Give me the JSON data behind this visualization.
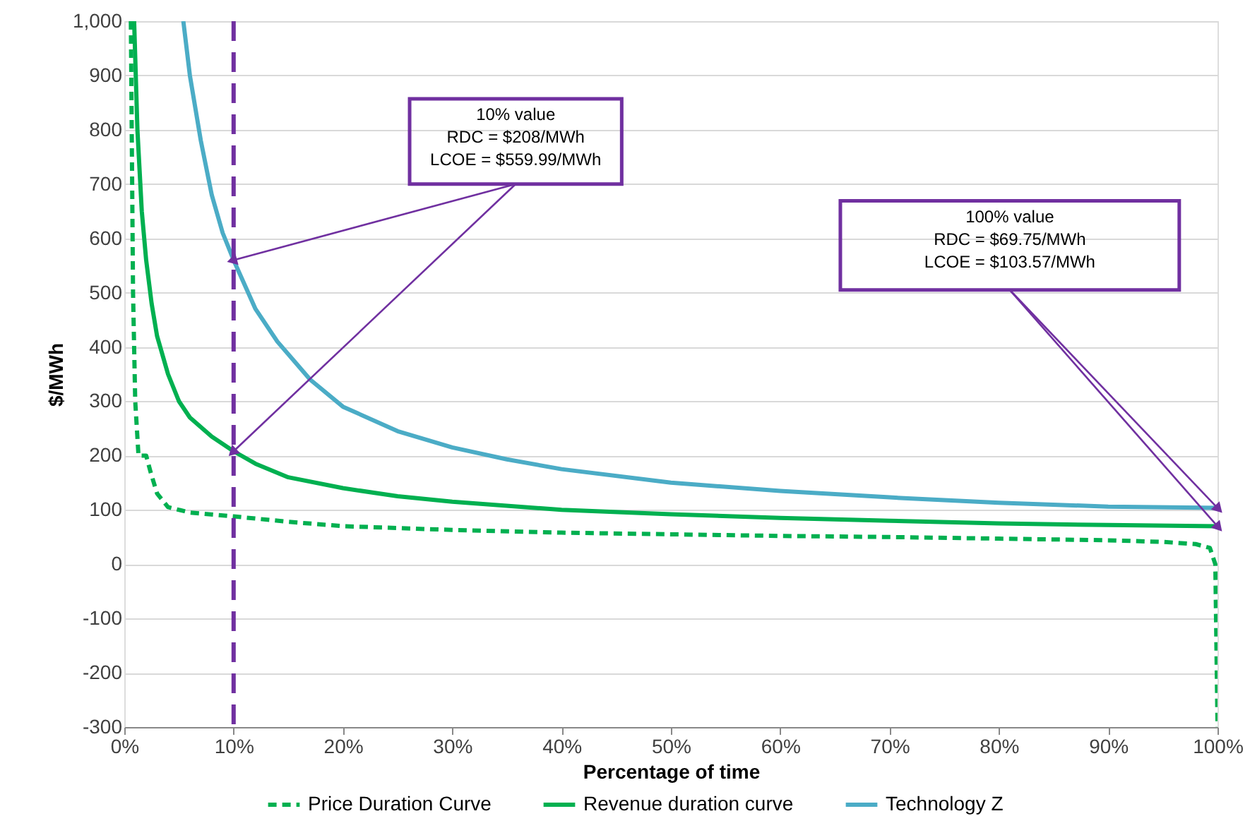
{
  "chart_data": {
    "type": "line",
    "xlabel": "Percentage of time",
    "ylabel": "$/MWh",
    "xlim": [
      0,
      100
    ],
    "xticks": [
      {
        "value": 0,
        "label": "0%"
      },
      {
        "value": 10,
        "label": "10%"
      },
      {
        "value": 20,
        "label": "20%"
      },
      {
        "value": 30,
        "label": "30%"
      },
      {
        "value": 40,
        "label": "40%"
      },
      {
        "value": 50,
        "label": "50%"
      },
      {
        "value": 60,
        "label": "60%"
      },
      {
        "value": 70,
        "label": "70%"
      },
      {
        "value": 80,
        "label": "80%"
      },
      {
        "value": 90,
        "label": "90%"
      },
      {
        "value": 100,
        "label": "100%"
      }
    ],
    "ylim": [
      -300,
      1000
    ],
    "yticks": [
      -300,
      -200,
      -100,
      0,
      100,
      200,
      300,
      400,
      500,
      600,
      700,
      800,
      900,
      {
        "value": 1000,
        "label": "1,000"
      }
    ],
    "grid": "y",
    "legend": "bottom",
    "marker": "none",
    "series": [
      {
        "name": "Price Duration Curve",
        "color": "#00b050",
        "line_style": "dashed",
        "x": [
          0.6,
          0.8,
          1.0,
          1.3,
          1.6,
          2.0,
          2.4,
          3.0,
          4.0,
          6.0,
          10,
          15,
          20,
          30,
          40,
          50,
          60,
          70,
          80,
          90,
          95,
          98,
          99.3,
          99.8,
          100
        ],
        "values": [
          1000,
          500,
          300,
          200,
          200,
          200,
          170,
          130,
          105,
          95,
          88,
          78,
          70,
          63,
          58,
          55,
          52,
          50,
          47,
          44,
          41,
          37,
          30,
          0,
          -300
        ]
      },
      {
        "name": "Revenue duration curve",
        "color": "#00b050",
        "line_style": "solid",
        "x": [
          0.9,
          1.2,
          1.6,
          2.0,
          2.5,
          3.0,
          4.0,
          5.0,
          6.0,
          8.0,
          10,
          12,
          15,
          20,
          25,
          30,
          40,
          50,
          60,
          70,
          80,
          90,
          100
        ],
        "values": [
          1000,
          800,
          650,
          560,
          480,
          420,
          350,
          300,
          270,
          235,
          208,
          185,
          160,
          140,
          125,
          115,
          100,
          92,
          85,
          80,
          75,
          72,
          69.75
        ]
      },
      {
        "name": "Technology Z",
        "color": "#4bacc6",
        "line_style": "solid",
        "x": [
          5.4,
          6,
          7,
          8,
          9,
          10,
          12,
          14,
          17,
          20,
          25,
          30,
          35,
          40,
          50,
          60,
          70,
          80,
          90,
          100
        ],
        "values": [
          1000,
          900,
          780,
          680,
          610,
          559.99,
          470,
          410,
          340,
          290,
          245,
          215,
          193,
          175,
          150,
          135,
          123,
          113,
          106,
          103.57
        ]
      }
    ],
    "ref_lines": [
      {
        "axis": "x",
        "value": 10,
        "color": "#7030a0",
        "line_style": "dashed"
      }
    ],
    "annotations": [
      {
        "text": "10% value\nRDC = $208/MWh\nLCOE = $559.99/MWh",
        "x": 10,
        "y": 559.99
      },
      {
        "text": "100% value\nRDC = $69.75/MWh\nLCOE = $103.57/MWh",
        "x": 100,
        "y": 103.57
      }
    ]
  }
}
